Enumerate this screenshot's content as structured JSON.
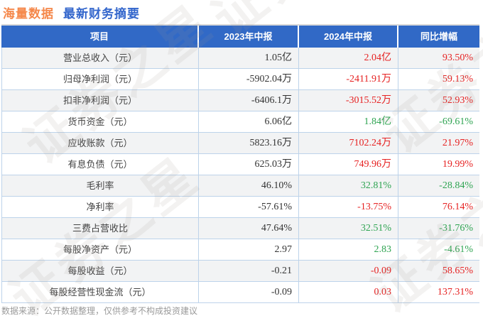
{
  "header": {
    "company": "海量数据",
    "report_title": "最新财务摘要"
  },
  "colors": {
    "company_orange": "#f5884b",
    "title_blue": "#3366cc",
    "table_header_bg": "#3169c6",
    "increase_red": "#e62222",
    "decrease_green": "#2fa452",
    "row_stripe": "#f2f3f4",
    "grid_line": "#bdd3ea"
  },
  "watermark": {
    "text": "证券之星"
  },
  "chart_data": {
    "type": "table",
    "title": "海量数据 最新财务摘要",
    "columns": [
      "项目",
      "2023年中报",
      "2024年中报",
      "同比增幅"
    ],
    "rows": [
      {
        "label": "营业总收入（元）",
        "y2023": "1.05亿",
        "y2024": "2.04亿",
        "yoy": "93.50%",
        "trend": "up"
      },
      {
        "label": "归母净利润（元）",
        "y2023": "-5902.04万",
        "y2024": "-2411.91万",
        "yoy": "59.13%",
        "trend": "up"
      },
      {
        "label": "扣非净利润（元）",
        "y2023": "-6406.1万",
        "y2024": "-3015.52万",
        "yoy": "52.93%",
        "trend": "up"
      },
      {
        "label": "货币资金（元）",
        "y2023": "6.06亿",
        "y2024": "1.84亿",
        "yoy": "-69.61%",
        "trend": "down"
      },
      {
        "label": "应收账款（元）",
        "y2023": "5823.16万",
        "y2024": "7102.24万",
        "yoy": "21.97%",
        "trend": "up"
      },
      {
        "label": "有息负债（元）",
        "y2023": "625.03万",
        "y2024": "749.96万",
        "yoy": "19.99%",
        "trend": "up"
      },
      {
        "label": "毛利率",
        "y2023": "46.10%",
        "y2024": "32.81%",
        "yoy": "-28.84%",
        "trend": "down"
      },
      {
        "label": "净利率",
        "y2023": "-57.61%",
        "y2024": "-13.75%",
        "yoy": "76.14%",
        "trend": "up"
      },
      {
        "label": "三费占营收比",
        "y2023": "47.64%",
        "y2024": "32.51%",
        "yoy": "-31.76%",
        "trend": "down"
      },
      {
        "label": "每股净资产（元）",
        "y2023": "2.97",
        "y2024": "2.83",
        "yoy": "-4.61%",
        "trend": "down"
      },
      {
        "label": "每股收益（元）",
        "y2023": "-0.21",
        "y2024": "-0.09",
        "yoy": "58.65%",
        "trend": "up"
      },
      {
        "label": "每股经营性现金流（元）",
        "y2023": "-0.09",
        "y2024": "0.03",
        "yoy": "137.31%",
        "trend": "up"
      }
    ]
  },
  "footer": {
    "note": "数据来源：公开数据整理，仅供参考不构成投资建议"
  }
}
